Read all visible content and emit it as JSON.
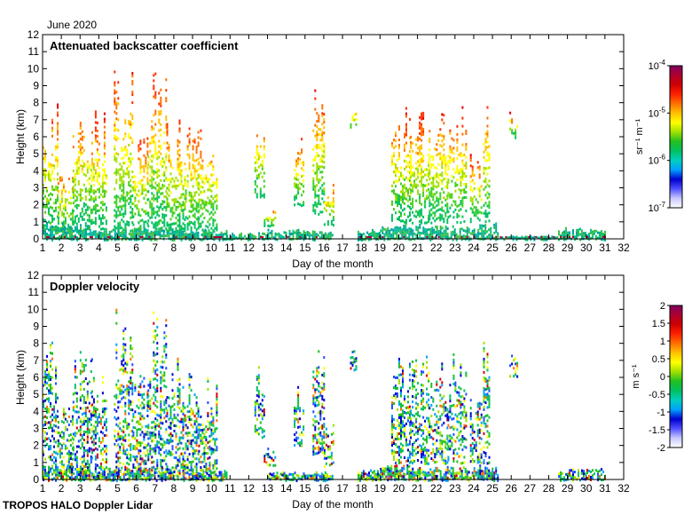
{
  "header": {
    "month_label": "June 2020"
  },
  "footer": {
    "instrument_label": "TROPOS HALO Doppler Lidar"
  },
  "colormap": [
    "#ffffff",
    "#c8c8ff",
    "#5050ff",
    "#0000d0",
    "#00a0ff",
    "#00d0c0",
    "#00c060",
    "#20c020",
    "#a0e000",
    "#ffff00",
    "#ffc000",
    "#ff7000",
    "#ff2000",
    "#d00000",
    "#b00030",
    "#800060"
  ],
  "chart_data": [
    {
      "type": "heatmap",
      "title": "Attenuated backscatter coefficient",
      "xlabel": "Day of the month",
      "ylabel": "Height (km)",
      "xlim": [
        1,
        32
      ],
      "ylim": [
        0,
        12
      ],
      "x_ticks": [
        "1",
        "2",
        "3",
        "4",
        "5",
        "6",
        "7",
        "8",
        "9",
        "10",
        "11",
        "12",
        "13",
        "14",
        "15",
        "16",
        "17",
        "18",
        "19",
        "20",
        "21",
        "22",
        "23",
        "24",
        "25",
        "26",
        "27",
        "28",
        "29",
        "30",
        "31",
        "32"
      ],
      "y_ticks": [
        "0",
        "1",
        "2",
        "3",
        "4",
        "5",
        "6",
        "7",
        "8",
        "9",
        "10",
        "11",
        "12"
      ],
      "grid": false,
      "colorbar": {
        "label": "sr⁻¹ m⁻¹",
        "scale": "log",
        "range": [
          1e-07,
          0.0001
        ],
        "ticks": [
          {
            "base": "10",
            "exp": "-4"
          },
          {
            "base": "10",
            "exp": "-5"
          },
          {
            "base": "10",
            "exp": "-6"
          },
          {
            "base": "10",
            "exp": "-7"
          }
        ]
      },
      "boundary_layer": [
        {
          "x0": 1.0,
          "x1": 3.5,
          "top": 1.0
        },
        {
          "x0": 3.5,
          "x1": 6.0,
          "top": 0.7
        },
        {
          "x0": 6.0,
          "x1": 8.5,
          "top": 0.8
        },
        {
          "x0": 8.5,
          "x1": 10.8,
          "top": 0.6
        },
        {
          "x0": 10.8,
          "x1": 13.0,
          "top": 0.4
        },
        {
          "x0": 13.0,
          "x1": 15.0,
          "top": 0.6
        },
        {
          "x0": 15.0,
          "x1": 16.5,
          "top": 0.5
        },
        {
          "x0": 17.8,
          "x1": 19.0,
          "top": 0.6
        },
        {
          "x0": 19.0,
          "x1": 22.0,
          "top": 0.9
        },
        {
          "x0": 22.0,
          "x1": 24.2,
          "top": 0.8
        },
        {
          "x0": 24.2,
          "x1": 25.3,
          "top": 1.0
        },
        {
          "x0": 25.3,
          "x1": 28.5,
          "top": 0.2
        },
        {
          "x0": 28.5,
          "x1": 31.0,
          "top": 0.7
        }
      ],
      "columns": [
        {
          "x0": 1.0,
          "x1": 1.8,
          "bottom": 0.5,
          "top": 8.2
        },
        {
          "x0": 1.8,
          "x1": 2.6,
          "bottom": 0.5,
          "top": 4.5
        },
        {
          "x0": 2.6,
          "x1": 3.6,
          "bottom": 0.8,
          "top": 8.0
        },
        {
          "x0": 3.6,
          "x1": 4.4,
          "bottom": 0.6,
          "top": 7.6
        },
        {
          "x0": 4.8,
          "x1": 5.8,
          "bottom": 0.5,
          "top": 10.4
        },
        {
          "x0": 5.8,
          "x1": 6.6,
          "bottom": 0.5,
          "top": 6.5
        },
        {
          "x0": 6.6,
          "x1": 7.6,
          "bottom": 0.5,
          "top": 10.0
        },
        {
          "x0": 7.6,
          "x1": 8.6,
          "bottom": 0.5,
          "top": 7.2
        },
        {
          "x0": 8.6,
          "x1": 9.3,
          "bottom": 0.5,
          "top": 7.0
        },
        {
          "x0": 9.3,
          "x1": 10.3,
          "bottom": 0.5,
          "top": 6.5
        },
        {
          "x0": 12.3,
          "x1": 12.8,
          "bottom": 2.5,
          "top": 7.3
        },
        {
          "x0": 12.8,
          "x1": 13.4,
          "bottom": 0.8,
          "top": 2.0
        },
        {
          "x0": 14.4,
          "x1": 14.9,
          "bottom": 2.0,
          "top": 6.0
        },
        {
          "x0": 15.4,
          "x1": 16.0,
          "bottom": 1.5,
          "top": 9.1
        },
        {
          "x0": 16.0,
          "x1": 16.5,
          "bottom": 0.8,
          "top": 3.5
        },
        {
          "x0": 17.4,
          "x1": 17.7,
          "bottom": 6.5,
          "top": 8.0
        },
        {
          "x0": 19.6,
          "x1": 20.6,
          "bottom": 1.0,
          "top": 7.8
        },
        {
          "x0": 20.6,
          "x1": 21.6,
          "bottom": 1.0,
          "top": 7.5
        },
        {
          "x0": 21.6,
          "x1": 22.6,
          "bottom": 1.0,
          "top": 7.8
        },
        {
          "x0": 22.6,
          "x1": 23.6,
          "bottom": 1.0,
          "top": 7.8
        },
        {
          "x0": 23.8,
          "x1": 24.4,
          "bottom": 1.0,
          "top": 5.0
        },
        {
          "x0": 24.5,
          "x1": 24.8,
          "bottom": 1.0,
          "top": 8.5
        },
        {
          "x0": 25.9,
          "x1": 26.3,
          "bottom": 6.0,
          "top": 7.5
        }
      ]
    },
    {
      "type": "heatmap",
      "title": "Doppler velocity",
      "xlabel": "Day of the month",
      "ylabel": "Height (km)",
      "xlim": [
        1,
        32
      ],
      "ylim": [
        0,
        12
      ],
      "x_ticks": [
        "1",
        "2",
        "3",
        "4",
        "5",
        "6",
        "7",
        "8",
        "9",
        "10",
        "11",
        "12",
        "13",
        "14",
        "15",
        "16",
        "17",
        "18",
        "19",
        "20",
        "21",
        "22",
        "23",
        "24",
        "25",
        "26",
        "27",
        "28",
        "29",
        "30",
        "31",
        "32"
      ],
      "y_ticks": [
        "0",
        "1",
        "2",
        "3",
        "4",
        "5",
        "6",
        "7",
        "8",
        "9",
        "10",
        "11",
        "12"
      ],
      "grid": false,
      "colorbar": {
        "label": "m s⁻¹",
        "scale": "linear",
        "range": [
          -2,
          2
        ],
        "ticks": [
          "2",
          "1.5",
          "1",
          "0.5",
          "0",
          "-0.5",
          "-1",
          "-1.5",
          "-2"
        ]
      },
      "boundary_layer": [
        {
          "x0": 1.0,
          "x1": 3.5,
          "top": 1.0
        },
        {
          "x0": 3.5,
          "x1": 6.0,
          "top": 0.7
        },
        {
          "x0": 6.0,
          "x1": 8.5,
          "top": 0.8
        },
        {
          "x0": 8.5,
          "x1": 10.8,
          "top": 0.6
        },
        {
          "x0": 13.0,
          "x1": 15.0,
          "top": 0.5
        },
        {
          "x0": 15.0,
          "x1": 16.5,
          "top": 0.5
        },
        {
          "x0": 17.8,
          "x1": 19.0,
          "top": 0.6
        },
        {
          "x0": 19.0,
          "x1": 22.0,
          "top": 0.9
        },
        {
          "x0": 22.0,
          "x1": 24.2,
          "top": 0.8
        },
        {
          "x0": 24.2,
          "x1": 25.3,
          "top": 0.9
        },
        {
          "x0": 28.5,
          "x1": 31.0,
          "top": 0.7
        }
      ],
      "columns": [
        {
          "x0": 1.0,
          "x1": 1.8,
          "bottom": 0.5,
          "top": 8.2
        },
        {
          "x0": 1.8,
          "x1": 2.6,
          "bottom": 0.5,
          "top": 4.5
        },
        {
          "x0": 2.6,
          "x1": 3.6,
          "bottom": 0.8,
          "top": 8.0
        },
        {
          "x0": 3.6,
          "x1": 4.4,
          "bottom": 0.6,
          "top": 7.6
        },
        {
          "x0": 4.8,
          "x1": 5.8,
          "bottom": 0.5,
          "top": 10.4
        },
        {
          "x0": 5.8,
          "x1": 6.6,
          "bottom": 0.5,
          "top": 6.5
        },
        {
          "x0": 6.6,
          "x1": 7.6,
          "bottom": 0.5,
          "top": 10.0
        },
        {
          "x0": 7.6,
          "x1": 8.6,
          "bottom": 0.5,
          "top": 7.2
        },
        {
          "x0": 8.6,
          "x1": 9.3,
          "bottom": 0.5,
          "top": 7.0
        },
        {
          "x0": 9.3,
          "x1": 10.3,
          "bottom": 0.5,
          "top": 6.5
        },
        {
          "x0": 12.3,
          "x1": 12.8,
          "bottom": 2.5,
          "top": 7.3
        },
        {
          "x0": 12.8,
          "x1": 13.4,
          "bottom": 0.8,
          "top": 2.0
        },
        {
          "x0": 14.4,
          "x1": 14.9,
          "bottom": 2.0,
          "top": 6.0
        },
        {
          "x0": 15.4,
          "x1": 16.0,
          "bottom": 1.5,
          "top": 9.1
        },
        {
          "x0": 16.0,
          "x1": 16.5,
          "bottom": 0.8,
          "top": 3.5
        },
        {
          "x0": 17.4,
          "x1": 17.7,
          "bottom": 6.5,
          "top": 8.0
        },
        {
          "x0": 19.6,
          "x1": 20.6,
          "bottom": 1.0,
          "top": 7.8
        },
        {
          "x0": 20.6,
          "x1": 21.6,
          "bottom": 1.0,
          "top": 7.5
        },
        {
          "x0": 21.6,
          "x1": 22.6,
          "bottom": 1.0,
          "top": 7.8
        },
        {
          "x0": 22.6,
          "x1": 23.6,
          "bottom": 1.0,
          "top": 7.8
        },
        {
          "x0": 23.8,
          "x1": 24.4,
          "bottom": 1.0,
          "top": 5.0
        },
        {
          "x0": 24.5,
          "x1": 24.8,
          "bottom": 1.0,
          "top": 8.5
        },
        {
          "x0": 25.9,
          "x1": 26.3,
          "bottom": 6.0,
          "top": 7.5
        }
      ]
    }
  ]
}
